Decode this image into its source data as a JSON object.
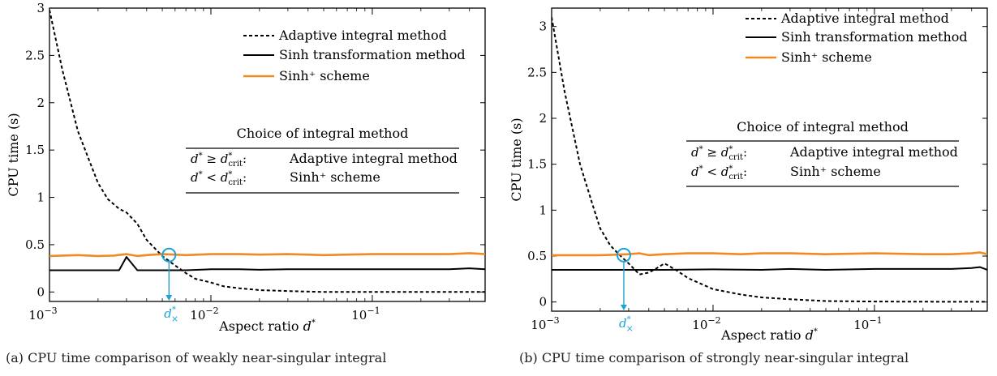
{
  "chart_data": [
    {
      "type": "line",
      "panel": "a",
      "caption": "(a) CPU time comparison of weakly near-singular integral",
      "xlabel_main": "Aspect ratio ",
      "xlabel_var": "d",
      "xlabel_sup": "*",
      "ylabel": "CPU time (s)",
      "xscale": "log",
      "xlim": [
        0.001,
        0.5
      ],
      "ylim": [
        -0.1,
        3.0
      ],
      "xticks": [
        {
          "value": 0.001,
          "base": "10",
          "exp": "−3"
        },
        {
          "value": 0.01,
          "base": "10",
          "exp": "−2"
        },
        {
          "value": 0.1,
          "base": "10",
          "exp": "−1"
        }
      ],
      "yticks": [
        {
          "value": 0,
          "label": "0"
        },
        {
          "value": 0.5,
          "label": "0.5"
        },
        {
          "value": 1,
          "label": "1"
        },
        {
          "value": 1.5,
          "label": "1.5"
        },
        {
          "value": 2,
          "label": "2"
        },
        {
          "value": 2.5,
          "label": "2.5"
        },
        {
          "value": 3,
          "label": "3"
        }
      ],
      "series": [
        {
          "name": "Adaptive integral method",
          "style": "dashed",
          "color": "#000000",
          "x": [
            0.001,
            0.0012,
            0.0015,
            0.0018,
            0.002,
            0.0023,
            0.0027,
            0.003,
            0.0035,
            0.004,
            0.0045,
            0.005,
            0.006,
            0.007,
            0.008,
            0.01,
            0.012,
            0.015,
            0.02,
            0.03,
            0.05,
            0.1,
            0.2,
            0.5
          ],
          "y": [
            2.98,
            2.35,
            1.7,
            1.35,
            1.15,
            0.98,
            0.88,
            0.84,
            0.72,
            0.55,
            0.46,
            0.38,
            0.28,
            0.2,
            0.14,
            0.1,
            0.06,
            0.04,
            0.02,
            0.01,
            0.0,
            0.0,
            0.0,
            0.0
          ]
        },
        {
          "name": "Sinh transformation method",
          "style": "solid",
          "color": "#000000",
          "x": [
            0.001,
            0.002,
            0.0027,
            0.003,
            0.0035,
            0.004,
            0.005,
            0.007,
            0.01,
            0.015,
            0.02,
            0.03,
            0.05,
            0.1,
            0.2,
            0.3,
            0.4,
            0.5
          ],
          "y": [
            0.23,
            0.23,
            0.23,
            0.37,
            0.23,
            0.23,
            0.23,
            0.23,
            0.24,
            0.24,
            0.235,
            0.24,
            0.24,
            0.24,
            0.24,
            0.24,
            0.25,
            0.24
          ]
        },
        {
          "name": "Sinh⁺ scheme",
          "style": "solid",
          "color": "#f08a24",
          "x": [
            0.001,
            0.0015,
            0.002,
            0.0025,
            0.003,
            0.0035,
            0.004,
            0.005,
            0.007,
            0.01,
            0.015,
            0.02,
            0.03,
            0.05,
            0.1,
            0.2,
            0.3,
            0.4,
            0.5
          ],
          "y": [
            0.38,
            0.39,
            0.38,
            0.385,
            0.4,
            0.38,
            0.39,
            0.4,
            0.39,
            0.4,
            0.4,
            0.395,
            0.4,
            0.39,
            0.4,
            0.4,
            0.4,
            0.41,
            0.4
          ]
        }
      ],
      "crossover": {
        "x": 0.0055,
        "y": 0.39,
        "label_var": "d",
        "label_sup": "*",
        "label_sub": "×",
        "color": "#1fa2d8"
      },
      "legend_position": "top-right",
      "table": {
        "title": "Choice of integral method",
        "rows": [
          {
            "cond_var": "d",
            "cond_op": " ≥ ",
            "cond_rhs": "d",
            "cond_rhs_sub": "crit",
            "colon": ":",
            "method": "Adaptive integral method"
          },
          {
            "cond_var": "d",
            "cond_op": " < ",
            "cond_rhs": "d",
            "cond_rhs_sub": "crit",
            "colon": ":",
            "method": "Sinh⁺ scheme"
          }
        ]
      }
    },
    {
      "type": "line",
      "panel": "b",
      "caption": "(b) CPU time comparison of strongly near-singular integral",
      "xlabel_main": "Aspect ratio ",
      "xlabel_var": "d",
      "xlabel_sup": "*",
      "ylabel": "CPU time (s)",
      "xscale": "log",
      "xlim": [
        0.001,
        0.5
      ],
      "ylim": [
        -0.1,
        3.2
      ],
      "xticks": [
        {
          "value": 0.001,
          "base": "10",
          "exp": "−3"
        },
        {
          "value": 0.01,
          "base": "10",
          "exp": "−2"
        },
        {
          "value": 0.1,
          "base": "10",
          "exp": "−1"
        }
      ],
      "yticks": [
        {
          "value": 0,
          "label": "0"
        },
        {
          "value": 0.5,
          "label": "0.5"
        },
        {
          "value": 1,
          "label": "1"
        },
        {
          "value": 1.5,
          "label": "1.5"
        },
        {
          "value": 2,
          "label": "2"
        },
        {
          "value": 2.5,
          "label": "2.5"
        },
        {
          "value": 3,
          "label": "3"
        }
      ],
      "series": [
        {
          "name": "Adaptive integral method",
          "style": "dashed",
          "color": "#000000",
          "x": [
            0.001,
            0.0012,
            0.0015,
            0.0018,
            0.002,
            0.0023,
            0.0026,
            0.003,
            0.0035,
            0.004,
            0.0045,
            0.005,
            0.006,
            0.007,
            0.01,
            0.015,
            0.02,
            0.03,
            0.05,
            0.1,
            0.2,
            0.5
          ],
          "y": [
            3.1,
            2.3,
            1.5,
            1.05,
            0.8,
            0.62,
            0.52,
            0.42,
            0.3,
            0.32,
            0.37,
            0.42,
            0.34,
            0.26,
            0.14,
            0.08,
            0.05,
            0.03,
            0.01,
            0.005,
            0.003,
            0.002
          ]
        },
        {
          "name": "Sinh transformation method",
          "style": "solid",
          "color": "#000000",
          "x": [
            0.001,
            0.002,
            0.003,
            0.005,
            0.01,
            0.02,
            0.03,
            0.05,
            0.1,
            0.2,
            0.3,
            0.4,
            0.45,
            0.5
          ],
          "y": [
            0.35,
            0.35,
            0.35,
            0.35,
            0.355,
            0.35,
            0.36,
            0.35,
            0.36,
            0.36,
            0.36,
            0.37,
            0.38,
            0.35
          ]
        },
        {
          "name": "Sinh⁺ scheme",
          "style": "solid",
          "color": "#f08a24",
          "x": [
            0.001,
            0.0015,
            0.002,
            0.0025,
            0.003,
            0.0035,
            0.004,
            0.005,
            0.007,
            0.01,
            0.015,
            0.02,
            0.03,
            0.05,
            0.1,
            0.2,
            0.3,
            0.4,
            0.45,
            0.5
          ],
          "y": [
            0.51,
            0.51,
            0.51,
            0.515,
            0.52,
            0.53,
            0.51,
            0.52,
            0.53,
            0.53,
            0.52,
            0.53,
            0.53,
            0.52,
            0.53,
            0.52,
            0.52,
            0.53,
            0.54,
            0.52
          ]
        }
      ],
      "crossover": {
        "x": 0.0028,
        "y": 0.51,
        "label_var": "d",
        "label_sup": "*",
        "label_sub": "×",
        "color": "#1fa2d8"
      },
      "legend_position": "top-right",
      "table": {
        "title": "Choice of integral method",
        "rows": [
          {
            "cond_var": "d",
            "cond_op": " ≥ ",
            "cond_rhs": "d",
            "cond_rhs_sub": "crit",
            "colon": ":",
            "method": "Adaptive integral method"
          },
          {
            "cond_var": "d",
            "cond_op": " < ",
            "cond_rhs": "d",
            "cond_rhs_sub": "crit",
            "colon": ":",
            "method": "Sinh⁺ scheme"
          }
        ]
      }
    }
  ]
}
